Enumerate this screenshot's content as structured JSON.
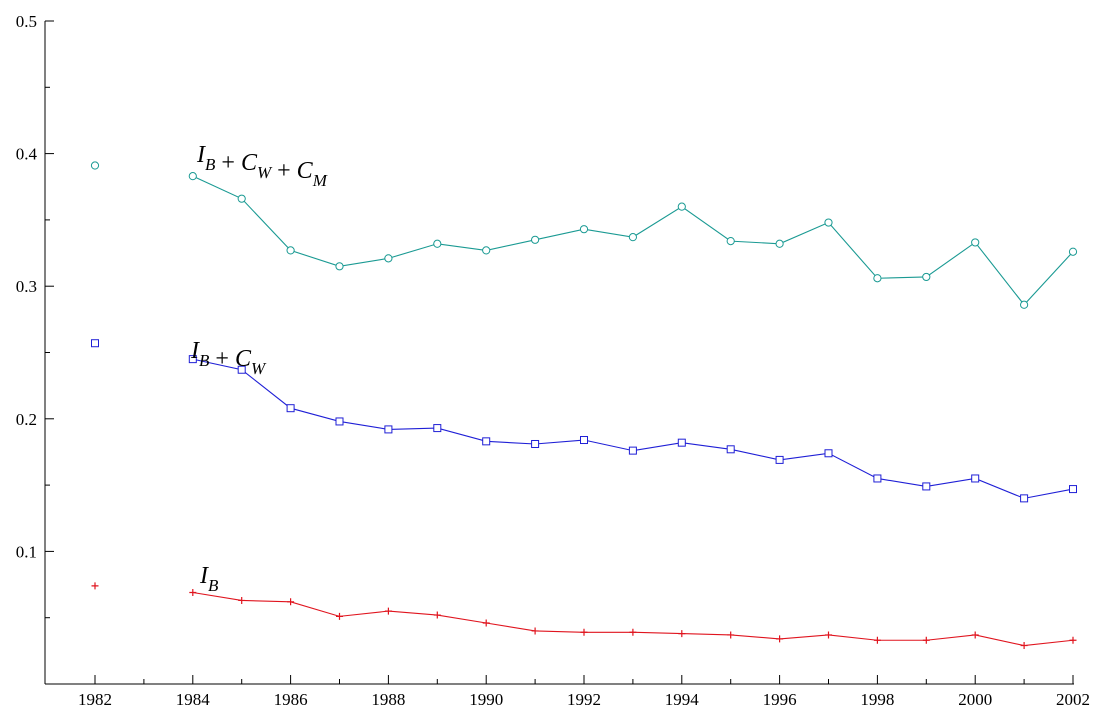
{
  "chart_data": {
    "type": "line",
    "title": "",
    "xlabel": "",
    "ylabel": "",
    "xlim": [
      1981.5,
      2002
    ],
    "ylim": [
      0,
      0.5
    ],
    "x_ticks": [
      1982,
      1984,
      1986,
      1988,
      1990,
      1992,
      1994,
      1996,
      1998,
      2000,
      2002
    ],
    "y_ticks": [
      0.1,
      0.2,
      0.3,
      0.4,
      0.5
    ],
    "y_tick_labels": [
      "0.1",
      "0.2",
      "0.3",
      "0.4",
      "0.5"
    ],
    "grid": false,
    "x": [
      1982,
      1984,
      1985,
      1986,
      1987,
      1988,
      1989,
      1990,
      1991,
      1992,
      1993,
      1994,
      1995,
      1996,
      1997,
      1998,
      1999,
      2000,
      2001,
      2002
    ],
    "series": [
      {
        "name": "I_B + C_W + C_M",
        "label_parts": [
          [
            "I",
            "B"
          ],
          " + ",
          [
            "C",
            "W"
          ],
          " + ",
          [
            "C",
            "M"
          ]
        ],
        "color": "#1a9a93",
        "marker": "circle",
        "values": [
          0.391,
          0.383,
          0.366,
          0.327,
          0.315,
          0.321,
          0.332,
          0.327,
          0.335,
          0.343,
          0.337,
          0.36,
          0.334,
          0.332,
          0.348,
          0.306,
          0.307,
          0.333,
          0.286,
          0.326
        ]
      },
      {
        "name": "I_B + C_W",
        "label_parts": [
          [
            "I",
            "B"
          ],
          " + ",
          [
            "C",
            "W"
          ]
        ],
        "color": "#1f1fd6",
        "marker": "square",
        "values": [
          0.257,
          0.245,
          0.237,
          0.208,
          0.198,
          0.192,
          0.193,
          0.183,
          0.181,
          0.184,
          0.176,
          0.182,
          0.177,
          0.169,
          0.174,
          0.155,
          0.149,
          0.155,
          0.14,
          0.147
        ]
      },
      {
        "name": "I_B",
        "label_parts": [
          [
            "I",
            "B"
          ]
        ],
        "color": "#e0141e",
        "marker": "plus",
        "values": [
          0.074,
          0.069,
          0.063,
          0.062,
          0.051,
          0.055,
          0.052,
          0.046,
          0.04,
          0.039,
          0.039,
          0.038,
          0.037,
          0.034,
          0.037,
          0.033,
          0.033,
          0.037,
          0.029,
          0.033
        ]
      }
    ]
  }
}
